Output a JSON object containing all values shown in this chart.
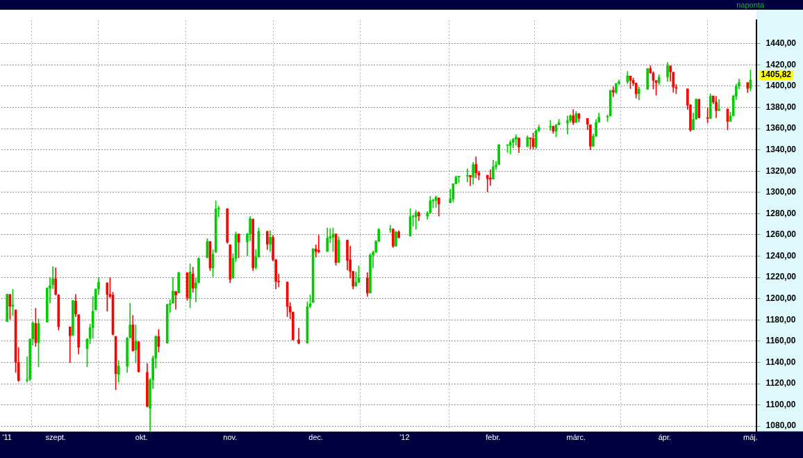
{
  "chart_data": {
    "type": "candlestick",
    "subtitle": "naponta",
    "x": [
      "2011-08-15",
      "2011-08-16",
      "2011-08-17",
      "2011-08-18",
      "2011-08-19",
      "2011-08-22",
      "2011-08-23",
      "2011-08-24",
      "2011-08-25",
      "2011-08-26",
      "2011-08-29",
      "2011-08-30",
      "2011-08-31",
      "2011-09-01",
      "2011-09-02",
      "2011-09-06",
      "2011-09-07",
      "2011-09-08",
      "2011-09-09",
      "2011-09-12",
      "2011-09-13",
      "2011-09-14",
      "2011-09-15",
      "2011-09-16",
      "2011-09-19",
      "2011-09-20",
      "2011-09-21",
      "2011-09-22",
      "2011-09-23",
      "2011-09-26",
      "2011-09-27",
      "2011-09-28",
      "2011-09-29",
      "2011-09-30",
      "2011-10-03",
      "2011-10-04",
      "2011-10-05",
      "2011-10-06",
      "2011-10-07",
      "2011-10-10",
      "2011-10-11",
      "2011-10-12",
      "2011-10-13",
      "2011-10-14",
      "2011-10-17",
      "2011-10-18",
      "2011-10-19",
      "2011-10-20",
      "2011-10-21",
      "2011-10-24",
      "2011-10-25",
      "2011-10-26",
      "2011-10-27",
      "2011-10-28",
      "2011-10-31",
      "2011-11-01",
      "2011-11-02",
      "2011-11-03",
      "2011-11-04",
      "2011-11-07",
      "2011-11-08",
      "2011-11-09",
      "2011-11-10",
      "2011-11-11",
      "2011-11-14",
      "2011-11-15",
      "2011-11-16",
      "2011-11-17",
      "2011-11-18",
      "2011-11-21",
      "2011-11-22",
      "2011-11-23",
      "2011-11-25",
      "2011-11-28",
      "2011-11-29",
      "2011-11-30",
      "2011-12-01",
      "2011-12-02",
      "2011-12-05",
      "2011-12-06",
      "2011-12-07",
      "2011-12-08",
      "2011-12-09",
      "2011-12-12",
      "2011-12-13",
      "2011-12-14",
      "2011-12-15",
      "2011-12-16",
      "2011-12-19",
      "2011-12-20",
      "2011-12-21",
      "2011-12-22",
      "2011-12-23",
      "2011-12-27",
      "2011-12-28",
      "2011-12-29",
      "2011-12-30",
      "2012-01-03",
      "2012-01-04",
      "2012-01-05",
      "2012-01-06",
      "2012-01-09",
      "2012-01-10",
      "2012-01-11",
      "2012-01-12",
      "2012-01-13",
      "2012-01-17",
      "2012-01-18",
      "2012-01-19",
      "2012-01-20",
      "2012-01-23",
      "2012-01-24",
      "2012-01-25",
      "2012-01-26",
      "2012-01-27",
      "2012-01-30",
      "2012-01-31",
      "2012-02-01",
      "2012-02-02",
      "2012-02-03",
      "2012-02-06",
      "2012-02-07",
      "2012-02-08",
      "2012-02-09",
      "2012-02-10",
      "2012-02-13",
      "2012-02-14",
      "2012-02-15",
      "2012-02-16",
      "2012-02-17",
      "2012-02-21",
      "2012-02-22",
      "2012-02-23",
      "2012-02-24",
      "2012-02-27",
      "2012-02-28",
      "2012-02-29",
      "2012-03-01",
      "2012-03-02",
      "2012-03-05",
      "2012-03-06",
      "2012-03-07",
      "2012-03-08",
      "2012-03-09",
      "2012-03-12",
      "2012-03-13",
      "2012-03-14",
      "2012-03-15",
      "2012-03-16",
      "2012-03-19",
      "2012-03-20",
      "2012-03-21",
      "2012-03-22",
      "2012-03-23",
      "2012-03-26",
      "2012-03-27",
      "2012-03-28",
      "2012-03-29",
      "2012-03-30",
      "2012-04-02",
      "2012-04-03",
      "2012-04-04",
      "2012-04-05",
      "2012-04-09",
      "2012-04-10",
      "2012-04-11",
      "2012-04-12",
      "2012-04-13",
      "2012-04-16",
      "2012-04-17",
      "2012-04-18",
      "2012-04-19",
      "2012-04-20",
      "2012-04-23",
      "2012-04-24",
      "2012-04-25",
      "2012-04-26",
      "2012-04-27",
      "2012-04-30",
      "2012-05-01"
    ],
    "ohlc": [
      [
        1178.5,
        1204.5,
        1178.5,
        1204
      ],
      [
        1204,
        1204,
        1180.6,
        1192.8
      ],
      [
        1192.8,
        1208.7,
        1184,
        1194
      ],
      [
        1189.4,
        1189.4,
        1130.6,
        1140
      ],
      [
        1140,
        1154,
        1122,
        1123
      ],
      [
        1123,
        1145.3,
        1121.3,
        1123.6
      ],
      [
        1124.3,
        1162,
        1122.6,
        1162
      ],
      [
        1162,
        1178.5,
        1156.2,
        1177
      ],
      [
        1176.6,
        1190.9,
        1155,
        1158.7
      ],
      [
        1158.7,
        1181,
        1135.7,
        1176.6
      ],
      [
        1177.9,
        1210.4,
        1177.9,
        1209.8
      ],
      [
        1209.8,
        1220,
        1195.7,
        1212.3
      ],
      [
        1213,
        1230.2,
        1209.4,
        1218.7
      ],
      [
        1218.7,
        1229,
        1203.4,
        1204
      ],
      [
        1203.4,
        1204,
        1170.4,
        1173.6
      ],
      [
        1173.4,
        1173.4,
        1139.8,
        1165
      ],
      [
        1165.7,
        1198.3,
        1165,
        1198.3
      ],
      [
        1197.7,
        1204,
        1183,
        1185.5
      ],
      [
        1184.9,
        1184.9,
        1147.9,
        1154.3
      ],
      [
        1153,
        1162.6,
        1135.7,
        1162
      ],
      [
        1162.6,
        1176,
        1157.7,
        1172.8
      ],
      [
        1172.8,
        1202.1,
        1162.6,
        1188.1
      ],
      [
        1189.4,
        1209.1,
        1189.4,
        1209.1
      ],
      [
        1209.1,
        1220,
        1204,
        1215.5
      ],
      [
        1214.9,
        1214.9,
        1188.1,
        1204
      ],
      [
        1204,
        1220,
        1200.9,
        1202.1
      ],
      [
        1203.4,
        1206,
        1165.7,
        1166.4
      ],
      [
        1164.5,
        1164.5,
        1114.3,
        1129.4
      ],
      [
        1128.7,
        1141.5,
        1121.3,
        1136.4
      ],
      [
        1136.4,
        1163.8,
        1130.6,
        1162.6
      ],
      [
        1163.2,
        1195.7,
        1163,
        1175.3
      ],
      [
        1175.3,
        1184.3,
        1150.4,
        1151
      ],
      [
        1151.7,
        1175.3,
        1139.6,
        1160
      ],
      [
        1159.4,
        1159.4,
        1130.7,
        1131.3
      ],
      [
        1130.6,
        1138.9,
        1098,
        1098.7
      ],
      [
        1096.8,
        1124.9,
        1074.5,
        1123.6
      ],
      [
        1123.6,
        1146,
        1115.3,
        1144
      ],
      [
        1144,
        1165.1,
        1134.5,
        1164.5
      ],
      [
        1164.5,
        1170.9,
        1149.8,
        1154.9
      ],
      [
        1158.1,
        1195,
        1158,
        1194.5
      ],
      [
        1194.5,
        1199,
        1186.8,
        1195.1
      ],
      [
        1195.7,
        1220,
        1195.7,
        1207.2
      ],
      [
        1206.6,
        1207.2,
        1190,
        1203.4
      ],
      [
        1205.3,
        1225,
        1205.3,
        1224.5
      ],
      [
        1224.5,
        1224.5,
        1198.3,
        1200.9
      ],
      [
        1200.2,
        1232.8,
        1191.3,
        1225.1
      ],
      [
        1223.2,
        1229.6,
        1206,
        1209.8
      ],
      [
        1209.8,
        1219.4,
        1197,
        1214.9
      ],
      [
        1214.9,
        1238.5,
        1214.9,
        1237.9
      ],
      [
        1238.5,
        1256.4,
        1238.5,
        1253.8
      ],
      [
        1253.8,
        1253.8,
        1226.4,
        1228.9
      ],
      [
        1228.9,
        1246.2,
        1220.6,
        1241.7
      ],
      [
        1243.6,
        1292.1,
        1243.6,
        1284.5
      ],
      [
        1284.5,
        1287,
        1276.8,
        1284.8
      ],
      [
        1284.5,
        1285,
        1252,
        1253.2
      ],
      [
        1250.6,
        1251,
        1214.9,
        1218.1
      ],
      [
        1219.4,
        1242.3,
        1219,
        1237.9
      ],
      [
        1237.9,
        1262.8,
        1234.7,
        1260.9
      ],
      [
        1260.9,
        1260.9,
        1238.5,
        1253.2
      ],
      [
        1253.2,
        1261.5,
        1240.4,
        1260.9
      ],
      [
        1260.9,
        1277.4,
        1254.5,
        1275.5
      ],
      [
        1274.9,
        1274.9,
        1226.4,
        1228.9
      ],
      [
        1229.6,
        1246.2,
        1227.7,
        1239.1
      ],
      [
        1239.1,
        1266.6,
        1239.1,
        1263.4
      ],
      [
        1263.4,
        1263.4,
        1246.2,
        1251.3
      ],
      [
        1251.3,
        1264,
        1244.3,
        1257.7
      ],
      [
        1257.7,
        1259.6,
        1235.3,
        1236.6
      ],
      [
        1236.6,
        1237,
        1209.1,
        1216.2
      ],
      [
        1216.2,
        1223.2,
        1211,
        1215.7
      ],
      [
        1215.5,
        1216,
        1183,
        1192.6
      ],
      [
        1192.6,
        1196.4,
        1181,
        1187.4
      ],
      [
        1187.4,
        1187.4,
        1161,
        1161.3
      ],
      [
        1161.3,
        1172.1,
        1157.4,
        1158.1
      ],
      [
        1158.1,
        1197,
        1158.1,
        1192.6
      ],
      [
        1192.6,
        1203.4,
        1191.3,
        1195.1
      ],
      [
        1196.4,
        1247.4,
        1196.4,
        1246.8
      ],
      [
        1246.8,
        1250.6,
        1239.1,
        1244.3
      ],
      [
        1245.5,
        1259.6,
        1243,
        1244.3
      ],
      [
        1244.3,
        1266.6,
        1244.3,
        1257
      ],
      [
        1257,
        1266,
        1252.6,
        1258.3
      ],
      [
        1257.7,
        1266.6,
        1244.3,
        1260.9
      ],
      [
        1260.9,
        1260.9,
        1231.5,
        1234
      ],
      [
        1234,
        1258.3,
        1234,
        1255.1
      ],
      [
        1255.1,
        1255.1,
        1227,
        1236
      ],
      [
        1236.6,
        1249.4,
        1219.4,
        1225.7
      ],
      [
        1225.7,
        1225.7,
        1209.1,
        1211.7
      ],
      [
        1211.7,
        1225.1,
        1211.7,
        1215.5
      ],
      [
        1215.5,
        1230.9,
        1214.9,
        1219.4
      ],
      [
        1219.4,
        1224.5,
        1202.1,
        1205.3
      ],
      [
        1205.3,
        1242.3,
        1205.3,
        1241.1
      ],
      [
        1241.1,
        1244.9,
        1228.9,
        1243.6
      ],
      [
        1243.6,
        1255.1,
        1243.6,
        1253.8
      ],
      [
        1253.8,
        1266,
        1253.8,
        1265.3
      ],
      [
        1264.9,
        1269.1,
        1262.1,
        1265.5
      ],
      [
        1265.3,
        1266,
        1248.1,
        1249.4
      ],
      [
        1249.4,
        1263.4,
        1249.4,
        1262.8
      ],
      [
        1262.8,
        1264,
        1257,
        1257.6
      ],
      [
        1258.9,
        1284.6,
        1258.9,
        1277.1
      ],
      [
        1277,
        1278.7,
        1268.1,
        1277.3
      ],
      [
        1277,
        1283.1,
        1265.3,
        1281.1
      ],
      [
        1280.9,
        1281.8,
        1273.3,
        1277.8
      ],
      [
        1277.8,
        1282,
        1274.6,
        1280.7
      ],
      [
        1280.8,
        1296.5,
        1280.8,
        1292.1
      ],
      [
        1292,
        1293.8,
        1285.4,
        1292.5
      ],
      [
        1292.5,
        1296.8,
        1285.8,
        1295.5
      ],
      [
        1294.8,
        1294.8,
        1277.6,
        1289.1
      ],
      [
        1290.2,
        1303,
        1290.2,
        1293.7
      ],
      [
        1293.7,
        1308.1,
        1291,
        1308.1
      ],
      [
        1308.1,
        1315.5,
        1308.1,
        1314.5
      ],
      [
        1314.5,
        1315.4,
        1309.2,
        1315.4
      ],
      [
        1315.3,
        1322.3,
        1309.9,
        1316
      ],
      [
        1316,
        1316,
        1306.1,
        1314.7
      ],
      [
        1314.4,
        1328.3,
        1307.7,
        1326.1
      ],
      [
        1326.3,
        1333.5,
        1313.6,
        1318.4
      ],
      [
        1318.3,
        1320.1,
        1311.7,
        1316.3
      ],
      [
        1316.2,
        1316.2,
        1300.5,
        1313
      ],
      [
        1313.5,
        1321.4,
        1306.7,
        1312.4
      ],
      [
        1312.5,
        1330.5,
        1312.5,
        1324.1
      ],
      [
        1324.2,
        1329.2,
        1321.6,
        1325.5
      ],
      [
        1326.2,
        1345.3,
        1326.2,
        1344.9
      ],
      [
        1344.3,
        1344.4,
        1337.5,
        1344.3
      ],
      [
        1344.3,
        1349.2,
        1335.9,
        1347.1
      ],
      [
        1347,
        1351,
        1342,
        1350
      ],
      [
        1350,
        1354.3,
        1344.6,
        1352
      ],
      [
        1351.2,
        1351.2,
        1337.4,
        1342.6
      ],
      [
        1343.1,
        1353.4,
        1343.1,
        1351.8
      ],
      [
        1351.3,
        1351.3,
        1340.8,
        1350.5
      ],
      [
        1350.5,
        1355.9,
        1340.8,
        1343.2
      ],
      [
        1342.6,
        1359,
        1341.2,
        1358
      ],
      [
        1358.1,
        1363.4,
        1357.2,
        1361.2
      ],
      [
        1361.2,
        1367.8,
        1358.1,
        1362.2
      ],
      [
        1362.1,
        1362.7,
        1355.5,
        1357.7
      ],
      [
        1357.5,
        1364.2,
        1352.3,
        1363.5
      ],
      [
        1363.5,
        1368.9,
        1363.5,
        1365.7
      ],
      [
        1365.2,
        1371.9,
        1354.9,
        1367.6
      ],
      [
        1367.6,
        1373.1,
        1366,
        1372.2
      ],
      [
        1372.2,
        1378,
        1363.8,
        1365.7
      ],
      [
        1365.9,
        1376.2,
        1365.9,
        1374.1
      ],
      [
        1374.1,
        1374.5,
        1366.4,
        1369.6
      ],
      [
        1369.6,
        1369.6,
        1359.1,
        1364.3
      ],
      [
        1363.6,
        1363.6,
        1340,
        1343.4
      ],
      [
        1343.4,
        1354.9,
        1343.4,
        1352.6
      ],
      [
        1352.7,
        1368.7,
        1352.7,
        1365.9
      ],
      [
        1366,
        1374.8,
        1366,
        1370.9
      ],
      [
        1370.8,
        1373,
        1366.7,
        1371.1
      ],
      [
        1371.9,
        1396.1,
        1371.9,
        1396
      ],
      [
        1396,
        1399.4,
        1390,
        1394.3
      ],
      [
        1394.2,
        1402.6,
        1392.8,
        1402.6
      ],
      [
        1402.6,
        1405.9,
        1401.5,
        1404.2
      ],
      [
        1404.2,
        1414,
        1402.4,
        1409.8
      ],
      [
        1409.6,
        1409.6,
        1397.7,
        1405.5
      ],
      [
        1405.5,
        1407.8,
        1400.6,
        1402.9
      ],
      [
        1402.9,
        1402.9,
        1388.7,
        1392.8
      ],
      [
        1392.8,
        1399.2,
        1386.9,
        1397.1
      ],
      [
        1397.1,
        1416.6,
        1397.1,
        1416.5
      ],
      [
        1416.6,
        1419.2,
        1412,
        1412.5
      ],
      [
        1412.5,
        1413.7,
        1397.2,
        1405.5
      ],
      [
        1405.4,
        1405.4,
        1391.6,
        1403.3
      ],
      [
        1403.3,
        1410.9,
        1401.4,
        1408.5
      ],
      [
        1408.5,
        1422.4,
        1404.5,
        1419
      ],
      [
        1419,
        1419,
        1404.6,
        1413.4
      ],
      [
        1413.1,
        1413.1,
        1394.1,
        1399
      ],
      [
        1398.8,
        1401.6,
        1392.9,
        1398.1
      ],
      [
        1397.5,
        1397.5,
        1378.2,
        1382.2
      ],
      [
        1382.2,
        1383,
        1357.4,
        1358.6
      ],
      [
        1359,
        1374.7,
        1359,
        1368.7
      ],
      [
        1368.8,
        1388.1,
        1368.8,
        1387.6
      ],
      [
        1387.6,
        1387.6,
        1369.9,
        1370.3
      ],
      [
        1370.3,
        1379.7,
        1365.4,
        1369.6
      ],
      [
        1369.6,
        1392.8,
        1369.6,
        1390.8
      ],
      [
        1390.8,
        1390.8,
        1383.3,
        1385.1
      ],
      [
        1385.1,
        1390.5,
        1370.3,
        1376.9
      ],
      [
        1377,
        1387.4,
        1377,
        1378.5
      ],
      [
        1378.5,
        1378.5,
        1358.8,
        1366.9
      ],
      [
        1367,
        1375.6,
        1366.8,
        1372
      ],
      [
        1372.1,
        1391.4,
        1372.1,
        1390.7
      ],
      [
        1390.6,
        1402.1,
        1387.3,
        1400
      ],
      [
        1400.2,
        1406.6,
        1397.3,
        1403.4
      ],
      [
        1403.3,
        1403.3,
        1394,
        1397.9
      ],
      [
        1397.9,
        1415.3,
        1395.7,
        1405.82
      ]
    ],
    "ylim": [
      1075,
      1462
    ],
    "yticks": [
      {
        "value": 1080,
        "label": "1080,00"
      },
      {
        "value": 1100,
        "label": "1100,00"
      },
      {
        "value": 1120,
        "label": "1120,00"
      },
      {
        "value": 1140,
        "label": "1140,00"
      },
      {
        "value": 1160,
        "label": "1160,00"
      },
      {
        "value": 1180,
        "label": "1180,00"
      },
      {
        "value": 1200,
        "label": "1200,00"
      },
      {
        "value": 1220,
        "label": "1220,00"
      },
      {
        "value": 1240,
        "label": "1240,00"
      },
      {
        "value": 1260,
        "label": "1260,00"
      },
      {
        "value": 1280,
        "label": "1280,00"
      },
      {
        "value": 1300,
        "label": "1300,00"
      },
      {
        "value": 1320,
        "label": "1320,00"
      },
      {
        "value": 1340,
        "label": "1340,00"
      },
      {
        "value": 1360,
        "label": "1360,00"
      },
      {
        "value": 1380,
        "label": "1380,00"
      },
      {
        "value": 1400,
        "label": "1400,00"
      },
      {
        "value": 1420,
        "label": "1420,00"
      },
      {
        "value": 1440,
        "label": "1440,00"
      }
    ],
    "xlim": [
      "2011-08-13",
      "2012-05-03"
    ],
    "xticks": [
      {
        "value": "2011-08-15",
        "label": "'11"
      },
      {
        "value": "2011-09-01",
        "label": "szept."
      },
      {
        "value": "2011-10-01",
        "label": "okt."
      },
      {
        "value": "2011-11-01",
        "label": "nov."
      },
      {
        "value": "2011-12-01",
        "label": "dec."
      },
      {
        "value": "2012-01-01",
        "label": "'12"
      },
      {
        "value": "2012-02-01",
        "label": "febr."
      },
      {
        "value": "2012-03-01",
        "label": "márc."
      },
      {
        "value": "2012-04-01",
        "label": "ápr."
      },
      {
        "value": "2012-05-01",
        "label": "máj."
      }
    ],
    "annotations": [
      {
        "text": "1405,82",
        "x": "2012-05-01",
        "y": 1405.82
      }
    ],
    "grid": true,
    "legend": false
  }
}
